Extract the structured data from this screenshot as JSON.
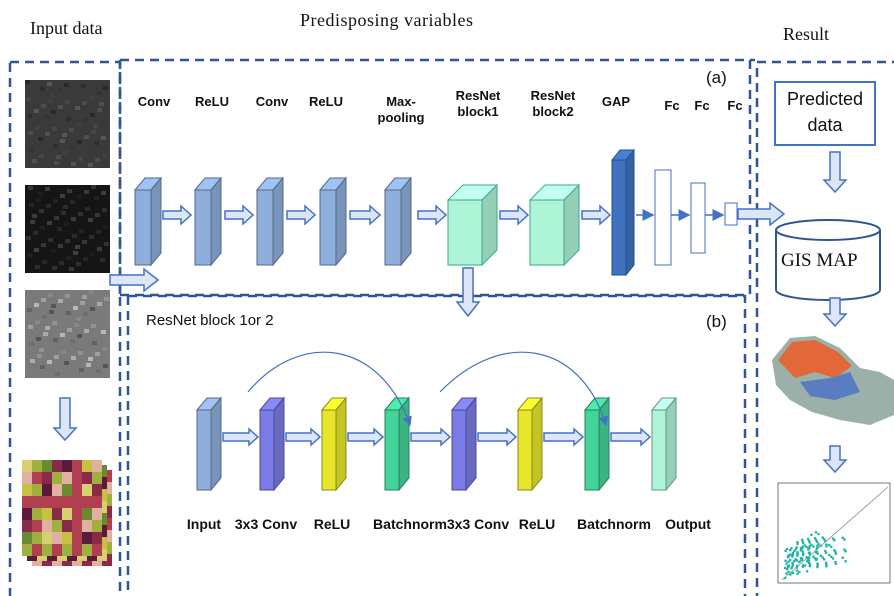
{
  "sections": {
    "input": "Input data",
    "predisposing": "Predisposing variables",
    "result": "Result"
  },
  "panel_a": {
    "label": "(a)",
    "layers": [
      "Conv",
      "ReLU",
      "Conv",
      "ReLU",
      "Max-pooling",
      "ResNet block1",
      "ResNet block2",
      "GAP",
      "Fc",
      "Fc",
      "Fc"
    ]
  },
  "panel_b": {
    "label": "(b)",
    "title": "ResNet block 1or 2",
    "layers": [
      "Input",
      "3x3 Conv",
      "ReLU",
      "Batchnorm",
      "3x3 Conv",
      "ReLU",
      "Batchnorm",
      "Output"
    ]
  },
  "result": {
    "predicted": "Predicted data",
    "gis": "GIS MAP"
  }
}
